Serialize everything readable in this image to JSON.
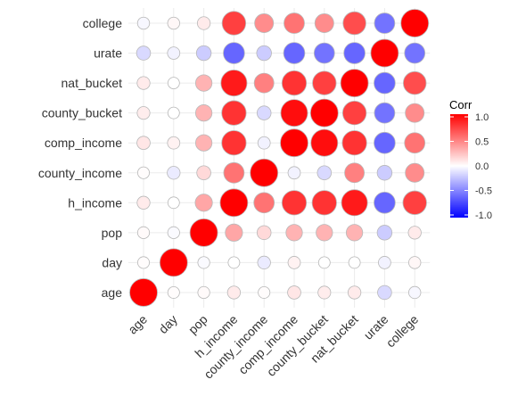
{
  "chart_data": {
    "type": "heatmap",
    "subtype": "correlation-circle-matrix",
    "variables": [
      "age",
      "day",
      "pop",
      "h_income",
      "county_income",
      "comp_income",
      "county_bucket",
      "nat_bucket",
      "urate",
      "college"
    ],
    "matrix": [
      [
        1.0,
        0.01,
        0.02,
        0.08,
        0.01,
        0.1,
        0.07,
        0.08,
        -0.15,
        -0.03
      ],
      [
        0.01,
        1.0,
        -0.02,
        0.0,
        -0.08,
        0.05,
        0.0,
        0.0,
        -0.05,
        0.03
      ],
      [
        0.02,
        -0.02,
        1.0,
        0.35,
        0.15,
        0.3,
        0.3,
        0.3,
        -0.2,
        0.08
      ],
      [
        0.08,
        0.0,
        0.35,
        1.0,
        0.55,
        0.8,
        0.8,
        0.9,
        -0.6,
        0.75
      ],
      [
        0.01,
        -0.08,
        0.15,
        0.55,
        1.0,
        -0.05,
        -0.15,
        0.5,
        -0.2,
        0.45
      ],
      [
        0.1,
        0.05,
        0.3,
        0.8,
        -0.05,
        1.0,
        0.95,
        0.8,
        -0.6,
        0.55
      ],
      [
        0.07,
        0.0,
        0.3,
        0.8,
        -0.15,
        0.95,
        1.0,
        0.75,
        -0.55,
        0.45
      ],
      [
        0.08,
        0.0,
        0.3,
        0.9,
        0.5,
        0.8,
        0.75,
        1.0,
        -0.6,
        0.7
      ],
      [
        -0.15,
        -0.05,
        -0.2,
        -0.6,
        -0.2,
        -0.6,
        -0.55,
        -0.6,
        1.0,
        -0.55
      ],
      [
        -0.03,
        0.03,
        0.08,
        0.75,
        0.45,
        0.55,
        0.45,
        0.7,
        -0.55,
        1.0
      ]
    ],
    "x_order": [
      "age",
      "day",
      "pop",
      "h_income",
      "county_income",
      "comp_income",
      "county_bucket",
      "nat_bucket",
      "urate",
      "college"
    ],
    "y_order_bottom_to_top": [
      "age",
      "day",
      "pop",
      "h_income",
      "county_income",
      "comp_income",
      "county_bucket",
      "nat_bucket",
      "urate",
      "college"
    ],
    "legend": {
      "title": "Corr",
      "ticks": [
        "1.0",
        "0.5",
        "0.0",
        "-0.5",
        "-1.0"
      ],
      "range": [
        -1,
        1
      ],
      "low_color": "#0000ff",
      "mid_color": "#ffffff",
      "high_color": "#ff0000",
      "placement": "right"
    },
    "grid": true
  }
}
